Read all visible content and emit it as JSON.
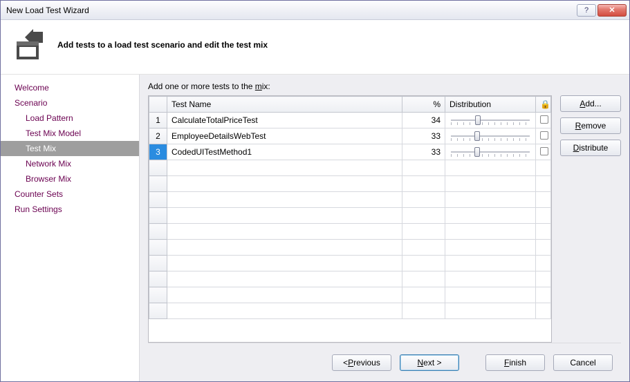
{
  "window": {
    "title": "New Load Test Wizard"
  },
  "header": {
    "heading": "Add tests to a load test scenario and edit the test mix"
  },
  "sidebar": {
    "items": [
      {
        "label": "Welcome",
        "level": "root",
        "selected": false
      },
      {
        "label": "Scenario",
        "level": "root",
        "selected": false
      },
      {
        "label": "Load Pattern",
        "level": "child",
        "selected": false
      },
      {
        "label": "Test Mix Model",
        "level": "child",
        "selected": false
      },
      {
        "label": "Test Mix",
        "level": "child",
        "selected": true
      },
      {
        "label": "Network Mix",
        "level": "child",
        "selected": false
      },
      {
        "label": "Browser Mix",
        "level": "child",
        "selected": false
      },
      {
        "label": "Counter Sets",
        "level": "root",
        "selected": false
      },
      {
        "label": "Run Settings",
        "level": "root",
        "selected": false
      }
    ]
  },
  "main": {
    "instruction_pre": "Add one or more tests to the ",
    "instruction_u": "m",
    "instruction_post": "ix:",
    "columns": {
      "num": "",
      "name": "Test Name",
      "pct": "%",
      "dist": "Distribution",
      "lock": "🔒"
    },
    "rows": [
      {
        "n": "1",
        "name": "CalculateTotalPriceTest",
        "pct": "34",
        "slider": 34,
        "sel": false
      },
      {
        "n": "2",
        "name": "EmployeeDetailsWebTest",
        "pct": "33",
        "slider": 33,
        "sel": false
      },
      {
        "n": "3",
        "name": "CodedUITestMethod1",
        "pct": "33",
        "slider": 33,
        "sel": true
      }
    ],
    "blank_rows": 10,
    "side_buttons": {
      "add_u": "A",
      "add_rest": "dd...",
      "remove_u": "R",
      "remove_rest": "emove",
      "dist_u": "D",
      "dist_rest": "istribute"
    }
  },
  "footer": {
    "previous_pre": "< ",
    "previous_u": "P",
    "previous_rest": "revious",
    "next_u": "N",
    "next_rest": "ext >",
    "finish_u": "F",
    "finish_rest": "inish",
    "cancel": "Cancel"
  },
  "colors": {
    "sidebar_link": "#6a0050",
    "selection_bg": "#9e9e9e",
    "row_selected": "#2a8ce0",
    "panel_bg": "#eeeef2"
  }
}
